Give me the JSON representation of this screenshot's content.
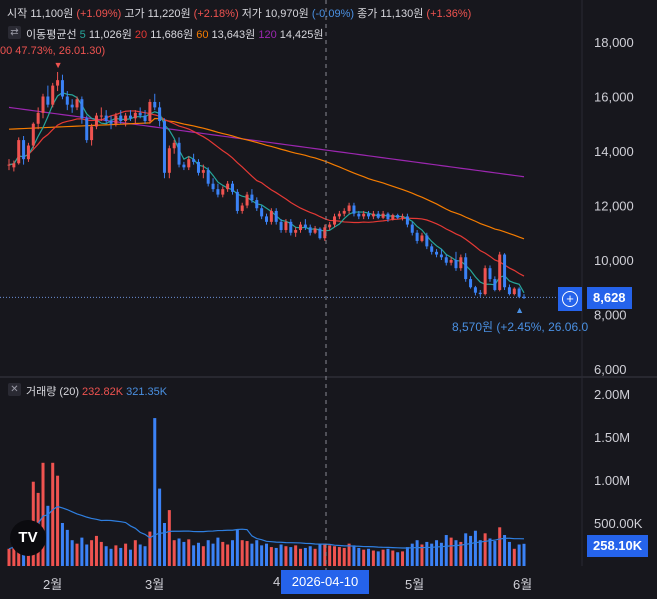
{
  "ohlc_legend": {
    "open_label": "시작",
    "open": "11,100원",
    "open_chg": "(+1.09%)",
    "high_label": "고가",
    "high": "11,220원",
    "high_chg": "(+2.18%)",
    "low_label": "저가",
    "low": "10,970원",
    "low_chg": "(-0.09%)",
    "close_label": "종가",
    "close": "11,130원",
    "close_chg": "(+1.36%)"
  },
  "ma_legend": {
    "title": "이동평균선",
    "p5": "5",
    "v5": "11,026원",
    "p20": "20",
    "v20": "11,686원",
    "p60": "60",
    "v60": "13,643원",
    "p120": "120",
    "v120": "14,425원"
  },
  "volume_legend": {
    "title": "거래량 (20)",
    "v1": "232.82K",
    "v2": "321.35K"
  },
  "annotations": {
    "high_mark": "00 47.73%, 26.01.30)",
    "low_mark": "8,570원 (+2.45%, 26.06.0"
  },
  "price_tag": "8,628",
  "volume_tag": "258.10K",
  "crosshair_date": "2026-04-10",
  "logo_text": "TV",
  "colors": {
    "up": "#ef5350",
    "down": "#3b82f6",
    "ma5": "#26a69a",
    "ma20": "#e53935",
    "ma60": "#f57c00",
    "ma120": "#9c27b0",
    "vol_ma": "#2f7fe0",
    "tag": "#2563eb"
  },
  "chart_data": {
    "type": "candlestick",
    "price_axis": {
      "ticks": [
        "18,000",
        "16,000",
        "14,000",
        "12,000",
        "10,000",
        "8,000",
        "6,000"
      ],
      "tick_values": [
        18000,
        16000,
        14000,
        12000,
        10000,
        8000,
        6000
      ],
      "range": [
        6000,
        18800
      ]
    },
    "volume_axis": {
      "ticks": [
        "2.00M",
        "1.50M",
        "1.00M",
        "500.00K"
      ],
      "tick_values": [
        2000000,
        1500000,
        1000000,
        500000
      ],
      "range": [
        0,
        2050000
      ]
    },
    "x_axis": {
      "labels": [
        "2월",
        "3월",
        "4",
        "5월",
        "6월"
      ]
    },
    "last_price": 8628,
    "candles": [
      {
        "o": 13500,
        "h": 13700,
        "l": 13300,
        "c": 13500,
        "v": 200000
      },
      {
        "o": 13400,
        "h": 13650,
        "l": 13250,
        "c": 13550,
        "v": 240000
      },
      {
        "o": 13550,
        "h": 14500,
        "l": 13500,
        "c": 14400,
        "v": 380000
      },
      {
        "o": 14400,
        "h": 14550,
        "l": 13500,
        "c": 13700,
        "v": 350000
      },
      {
        "o": 13700,
        "h": 14300,
        "l": 13600,
        "c": 14200,
        "v": 450000
      },
      {
        "o": 14200,
        "h": 15050,
        "l": 14100,
        "c": 15000,
        "v": 980000
      },
      {
        "o": 15000,
        "h": 15600,
        "l": 14800,
        "c": 15400,
        "v": 850000
      },
      {
        "o": 15400,
        "h": 16100,
        "l": 15200,
        "c": 16000,
        "v": 1200000
      },
      {
        "o": 16000,
        "h": 16400,
        "l": 15600,
        "c": 15700,
        "v": 700000
      },
      {
        "o": 15700,
        "h": 16500,
        "l": 15600,
        "c": 16400,
        "v": 1200000
      },
      {
        "o": 16400,
        "h": 16900,
        "l": 16200,
        "c": 16600,
        "v": 1050000
      },
      {
        "o": 16600,
        "h": 16800,
        "l": 15900,
        "c": 16000,
        "v": 500000
      },
      {
        "o": 16000,
        "h": 16200,
        "l": 15500,
        "c": 15700,
        "v": 420000
      },
      {
        "o": 15700,
        "h": 15900,
        "l": 15400,
        "c": 15600,
        "v": 300000
      },
      {
        "o": 15600,
        "h": 16000,
        "l": 15500,
        "c": 15900,
        "v": 260000
      },
      {
        "o": 15900,
        "h": 16000,
        "l": 15000,
        "c": 15200,
        "v": 330000
      },
      {
        "o": 15200,
        "h": 15300,
        "l": 14300,
        "c": 14400,
        "v": 250000
      },
      {
        "o": 14400,
        "h": 15000,
        "l": 14200,
        "c": 14900,
        "v": 300000
      },
      {
        "o": 14900,
        "h": 15400,
        "l": 14800,
        "c": 15300,
        "v": 350000
      },
      {
        "o": 15300,
        "h": 15600,
        "l": 15100,
        "c": 15300,
        "v": 280000
      },
      {
        "o": 15300,
        "h": 15500,
        "l": 15000,
        "c": 15100,
        "v": 230000
      },
      {
        "o": 15100,
        "h": 15300,
        "l": 14800,
        "c": 15000,
        "v": 200000
      },
      {
        "o": 15000,
        "h": 15400,
        "l": 14900,
        "c": 15300,
        "v": 240000
      },
      {
        "o": 15300,
        "h": 15500,
        "l": 15000,
        "c": 15100,
        "v": 210000
      },
      {
        "o": 15100,
        "h": 15400,
        "l": 14900,
        "c": 15300,
        "v": 260000
      },
      {
        "o": 15300,
        "h": 15500,
        "l": 15100,
        "c": 15200,
        "v": 190000
      },
      {
        "o": 15200,
        "h": 15500,
        "l": 15000,
        "c": 15400,
        "v": 300000
      },
      {
        "o": 15400,
        "h": 15600,
        "l": 15200,
        "c": 15300,
        "v": 250000
      },
      {
        "o": 15300,
        "h": 15500,
        "l": 15000,
        "c": 15100,
        "v": 230000
      },
      {
        "o": 15100,
        "h": 15900,
        "l": 15000,
        "c": 15800,
        "v": 400000
      },
      {
        "o": 15800,
        "h": 16100,
        "l": 15500,
        "c": 15600,
        "v": 1720000
      },
      {
        "o": 15600,
        "h": 15800,
        "l": 14900,
        "c": 15100,
        "v": 900000
      },
      {
        "o": 15100,
        "h": 15200,
        "l": 13000,
        "c": 13200,
        "v": 500000
      },
      {
        "o": 13200,
        "h": 14200,
        "l": 13000,
        "c": 14100,
        "v": 650000
      },
      {
        "o": 14100,
        "h": 14400,
        "l": 13900,
        "c": 14300,
        "v": 300000
      },
      {
        "o": 14300,
        "h": 14500,
        "l": 13400,
        "c": 13500,
        "v": 320000
      },
      {
        "o": 13500,
        "h": 13600,
        "l": 13300,
        "c": 13400,
        "v": 280000
      },
      {
        "o": 13400,
        "h": 13800,
        "l": 13300,
        "c": 13700,
        "v": 310000
      },
      {
        "o": 13700,
        "h": 13900,
        "l": 13500,
        "c": 13600,
        "v": 240000
      },
      {
        "o": 13600,
        "h": 13700,
        "l": 13100,
        "c": 13200,
        "v": 270000
      },
      {
        "o": 13200,
        "h": 13500,
        "l": 13000,
        "c": 13300,
        "v": 230000
      },
      {
        "o": 13300,
        "h": 13400,
        "l": 12700,
        "c": 12800,
        "v": 300000
      },
      {
        "o": 12800,
        "h": 13000,
        "l": 12500,
        "c": 12600,
        "v": 260000
      },
      {
        "o": 12600,
        "h": 12800,
        "l": 12300,
        "c": 12400,
        "v": 330000
      },
      {
        "o": 12400,
        "h": 12700,
        "l": 12300,
        "c": 12600,
        "v": 280000
      },
      {
        "o": 12600,
        "h": 12900,
        "l": 12500,
        "c": 12800,
        "v": 250000
      },
      {
        "o": 12800,
        "h": 12900,
        "l": 12400,
        "c": 12500,
        "v": 300000
      },
      {
        "o": 12500,
        "h": 12600,
        "l": 11700,
        "c": 11800,
        "v": 420000
      },
      {
        "o": 11800,
        "h": 12100,
        "l": 11700,
        "c": 12000,
        "v": 300000
      },
      {
        "o": 12000,
        "h": 12500,
        "l": 11900,
        "c": 12400,
        "v": 290000
      },
      {
        "o": 12400,
        "h": 12600,
        "l": 12100,
        "c": 12200,
        "v": 260000
      },
      {
        "o": 12200,
        "h": 12300,
        "l": 11800,
        "c": 11900,
        "v": 300000
      },
      {
        "o": 11900,
        "h": 12000,
        "l": 11500,
        "c": 11600,
        "v": 240000
      },
      {
        "o": 11600,
        "h": 11700,
        "l": 11300,
        "c": 11400,
        "v": 260000
      },
      {
        "o": 11400,
        "h": 11900,
        "l": 11300,
        "c": 11800,
        "v": 220000
      },
      {
        "o": 11800,
        "h": 11900,
        "l": 11300,
        "c": 11400,
        "v": 210000
      },
      {
        "o": 11400,
        "h": 11500,
        "l": 11000,
        "c": 11100,
        "v": 250000
      },
      {
        "o": 11100,
        "h": 11500,
        "l": 11000,
        "c": 11400,
        "v": 230000
      },
      {
        "o": 11400,
        "h": 11500,
        "l": 10900,
        "c": 11000,
        "v": 220000
      },
      {
        "o": 11000,
        "h": 11200,
        "l": 10850,
        "c": 11100,
        "v": 240000
      },
      {
        "o": 11100,
        "h": 11400,
        "l": 11000,
        "c": 11300,
        "v": 200000
      },
      {
        "o": 11300,
        "h": 11500,
        "l": 11100,
        "c": 11200,
        "v": 210000
      },
      {
        "o": 11200,
        "h": 11300,
        "l": 10900,
        "c": 11000,
        "v": 230000
      },
      {
        "o": 11000,
        "h": 11250,
        "l": 10950,
        "c": 11150,
        "v": 200000
      },
      {
        "o": 11150,
        "h": 11200,
        "l": 10750,
        "c": 10800,
        "v": 250000
      },
      {
        "o": 10800,
        "h": 11300,
        "l": 10700,
        "c": 11200,
        "v": 260000
      },
      {
        "o": 11200,
        "h": 11400,
        "l": 11100,
        "c": 11300,
        "v": 240000
      },
      {
        "o": 11300,
        "h": 11700,
        "l": 11200,
        "c": 11600,
        "v": 230000
      },
      {
        "o": 11600,
        "h": 11800,
        "l": 11500,
        "c": 11700,
        "v": 220000
      },
      {
        "o": 11700,
        "h": 11900,
        "l": 11600,
        "c": 11800,
        "v": 210000
      },
      {
        "o": 11800,
        "h": 12100,
        "l": 11700,
        "c": 12000,
        "v": 260000
      },
      {
        "o": 12000,
        "h": 12100,
        "l": 11600,
        "c": 11700,
        "v": 240000
      },
      {
        "o": 11700,
        "h": 11800,
        "l": 11500,
        "c": 11600,
        "v": 210000
      },
      {
        "o": 11600,
        "h": 11800,
        "l": 11500,
        "c": 11700,
        "v": 190000
      },
      {
        "o": 11700,
        "h": 11800,
        "l": 11500,
        "c": 11600,
        "v": 200000
      },
      {
        "o": 11600,
        "h": 11800,
        "l": 11500,
        "c": 11700,
        "v": 180000
      },
      {
        "o": 11700,
        "h": 11800,
        "l": 11500,
        "c": 11550,
        "v": 170000
      },
      {
        "o": 11550,
        "h": 11800,
        "l": 11500,
        "c": 11700,
        "v": 190000
      },
      {
        "o": 11700,
        "h": 11750,
        "l": 11400,
        "c": 11500,
        "v": 200000
      },
      {
        "o": 11500,
        "h": 11700,
        "l": 11450,
        "c": 11650,
        "v": 180000
      },
      {
        "o": 11650,
        "h": 11700,
        "l": 11500,
        "c": 11550,
        "v": 160000
      },
      {
        "o": 11550,
        "h": 11700,
        "l": 11450,
        "c": 11600,
        "v": 170000
      },
      {
        "o": 11600,
        "h": 11700,
        "l": 11200,
        "c": 11300,
        "v": 220000
      },
      {
        "o": 11300,
        "h": 11400,
        "l": 10900,
        "c": 11000,
        "v": 260000
      },
      {
        "o": 11000,
        "h": 11100,
        "l": 10600,
        "c": 10700,
        "v": 300000
      },
      {
        "o": 10700,
        "h": 11000,
        "l": 10650,
        "c": 10900,
        "v": 250000
      },
      {
        "o": 10900,
        "h": 11000,
        "l": 10400,
        "c": 10500,
        "v": 280000
      },
      {
        "o": 10500,
        "h": 10600,
        "l": 10200,
        "c": 10300,
        "v": 260000
      },
      {
        "o": 10300,
        "h": 10400,
        "l": 10100,
        "c": 10200,
        "v": 300000
      },
      {
        "o": 10200,
        "h": 10400,
        "l": 10000,
        "c": 10100,
        "v": 270000
      },
      {
        "o": 10100,
        "h": 10200,
        "l": 9800,
        "c": 9900,
        "v": 360000
      },
      {
        "o": 9900,
        "h": 10100,
        "l": 9800,
        "c": 10000,
        "v": 330000
      },
      {
        "o": 10000,
        "h": 10300,
        "l": 9600,
        "c": 9700,
        "v": 300000
      },
      {
        "o": 9700,
        "h": 10200,
        "l": 9600,
        "c": 10100,
        "v": 280000
      },
      {
        "o": 10100,
        "h": 10250,
        "l": 9200,
        "c": 9300,
        "v": 380000
      },
      {
        "o": 9300,
        "h": 9400,
        "l": 8950,
        "c": 9000,
        "v": 350000
      },
      {
        "o": 9000,
        "h": 9050,
        "l": 8700,
        "c": 8800,
        "v": 410000
      },
      {
        "o": 8800,
        "h": 8900,
        "l": 8650,
        "c": 8750,
        "v": 300000
      },
      {
        "o": 8750,
        "h": 9800,
        "l": 8700,
        "c": 9700,
        "v": 380000
      },
      {
        "o": 9700,
        "h": 9800,
        "l": 9200,
        "c": 9300,
        "v": 320000
      },
      {
        "o": 9300,
        "h": 9400,
        "l": 8850,
        "c": 8900,
        "v": 290000
      },
      {
        "o": 8900,
        "h": 10300,
        "l": 8850,
        "c": 10200,
        "v": 450000
      },
      {
        "o": 10200,
        "h": 10250,
        "l": 8900,
        "c": 9000,
        "v": 360000
      },
      {
        "o": 9000,
        "h": 9100,
        "l": 8700,
        "c": 8750,
        "v": 280000
      },
      {
        "o": 8750,
        "h": 9000,
        "l": 8700,
        "c": 8950,
        "v": 200000
      },
      {
        "o": 8950,
        "h": 9000,
        "l": 8600,
        "c": 8650,
        "v": 250000
      },
      {
        "o": 8650,
        "h": 8750,
        "l": 8570,
        "c": 8628,
        "v": 258100
      }
    ]
  }
}
